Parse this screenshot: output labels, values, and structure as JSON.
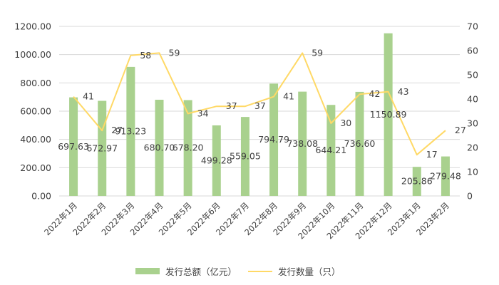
{
  "chart_data": {
    "type": "bar+line",
    "title": "",
    "categories": [
      "2022年1月",
      "2022年2月",
      "2022年3月",
      "2022年4月",
      "2022年5月",
      "2022年6月",
      "2022年7月",
      "2022年8月",
      "2022年9月",
      "2022年10月",
      "2022年11月",
      "2022年12月",
      "2023年1月",
      "2023年2月"
    ],
    "series": [
      {
        "name": "发行总额（亿元）",
        "type": "bar",
        "axis": "left",
        "color": "#a9d18e",
        "values": [
          697.63,
          672.97,
          913.23,
          680.7,
          678.2,
          499.28,
          559.05,
          794.79,
          738.08,
          644.21,
          736.6,
          1150.89,
          205.86,
          279.48
        ],
        "labels": [
          "697.63",
          "672.97",
          "913.23",
          "680.70",
          "678.20",
          "499.28",
          "559.05",
          "794.79",
          "738.08",
          "644.21",
          "736.60",
          "1150.89",
          "205.86",
          "279.48"
        ]
      },
      {
        "name": "发行数量（只）",
        "type": "line",
        "axis": "right",
        "color": "#ffd966",
        "values": [
          41,
          27,
          58,
          59,
          34,
          37,
          37,
          41,
          59,
          30,
          42,
          43,
          17,
          27
        ],
        "labels": [
          "41",
          "27",
          "58",
          "59",
          "34",
          "37",
          "37",
          "41",
          "59",
          "30",
          "42",
          "43",
          "17",
          "27"
        ]
      }
    ],
    "y_left": {
      "ticks": [
        "0.00",
        "200.00",
        "400.00",
        "600.00",
        "800.00",
        "1000.00",
        "1200.00"
      ],
      "min": 0,
      "max": 1200
    },
    "y_right": {
      "ticks": [
        "0",
        "10",
        "20",
        "30",
        "40",
        "50",
        "60",
        "70"
      ],
      "min": 0,
      "max": 70
    },
    "xlabel": "",
    "ylabel": "",
    "grid": true,
    "legend_position": "bottom"
  },
  "legend": {
    "bar_label": "发行总额（亿元）",
    "line_label": "发行数量（只）"
  }
}
